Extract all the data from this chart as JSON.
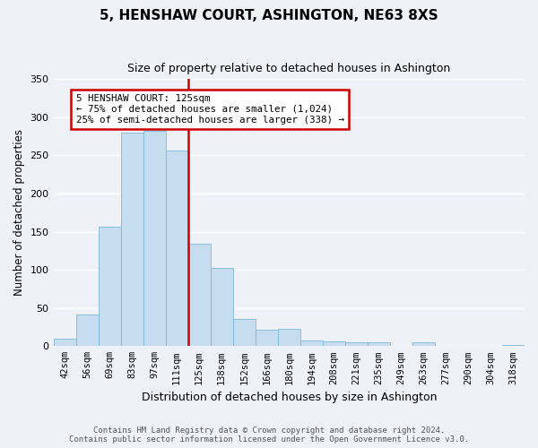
{
  "title": "5, HENSHAW COURT, ASHINGTON, NE63 8XS",
  "subtitle": "Size of property relative to detached houses in Ashington",
  "xlabel": "Distribution of detached houses by size in Ashington",
  "ylabel": "Number of detached properties",
  "bin_labels": [
    "42sqm",
    "56sqm",
    "69sqm",
    "83sqm",
    "97sqm",
    "111sqm",
    "125sqm",
    "138sqm",
    "152sqm",
    "166sqm",
    "180sqm",
    "194sqm",
    "208sqm",
    "221sqm",
    "235sqm",
    "249sqm",
    "263sqm",
    "277sqm",
    "290sqm",
    "304sqm",
    "318sqm"
  ],
  "bar_heights": [
    10,
    42,
    157,
    280,
    282,
    257,
    134,
    103,
    36,
    22,
    23,
    7,
    6,
    5,
    5,
    0,
    5,
    0,
    0,
    0,
    2
  ],
  "property_line_index": 6,
  "bar_color": "#c5ddef",
  "bar_edge_color": "#7eb8d8",
  "property_line_color": "#cc0000",
  "annotation_line1": "5 HENSHAW COURT: 125sqm",
  "annotation_line2": "← 75% of detached houses are smaller (1,024)",
  "annotation_line3": "25% of semi-detached houses are larger (338) →",
  "annotation_box_color": "#ffffff",
  "annotation_box_edge": "#cc0000",
  "ylim": [
    0,
    350
  ],
  "yticks": [
    0,
    50,
    100,
    150,
    200,
    250,
    300,
    350
  ],
  "footer_line1": "Contains HM Land Registry data © Crown copyright and database right 2024.",
  "footer_line2": "Contains public sector information licensed under the Open Government Licence v3.0.",
  "background_color": "#eef2f7",
  "title_fontsize": 11,
  "subtitle_fontsize": 9,
  "ylabel_fontsize": 8.5,
  "xlabel_fontsize": 9
}
